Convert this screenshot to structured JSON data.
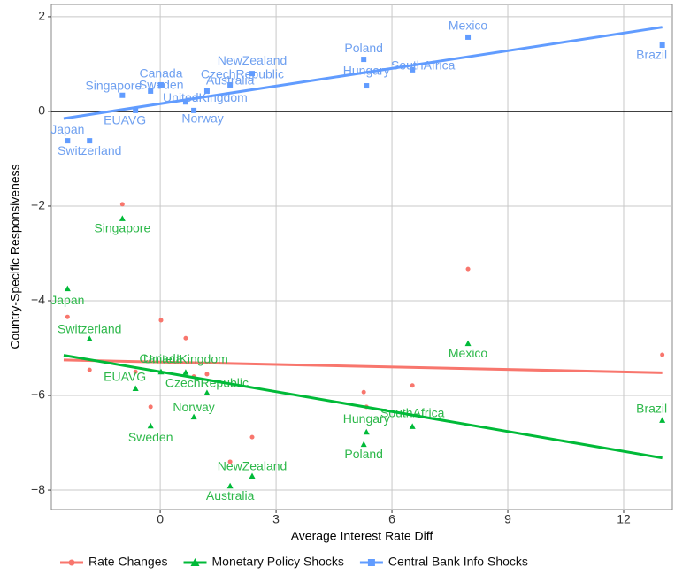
{
  "chart_data": {
    "type": "scatter",
    "x_label": "Average Interest Rate Diff",
    "y_label": "Country-Specific Responsiveness",
    "xlim": [
      -2.82,
      13.26
    ],
    "ylim": [
      -8.41,
      2.26
    ],
    "xticks": [
      0,
      3,
      6,
      9,
      12
    ],
    "yticks": [
      {
        "value": -8,
        "label": "−8"
      },
      {
        "value": -6,
        "label": "−6"
      },
      {
        "value": -4,
        "label": "−4"
      },
      {
        "value": -2,
        "label": "−2"
      },
      0,
      2
    ],
    "grid": true,
    "hline": 0,
    "legend": "bottom",
    "labels": [
      "Japan",
      "Switzerland",
      "Singapore",
      "EUAVG",
      "Sweden",
      "Canada",
      "UnitedKingdom",
      "Norway",
      "CzechRepublic",
      "Australia",
      "NewZealand",
      "Hungary",
      "Poland",
      "SouthAfrica",
      "Mexico",
      "Brazil"
    ],
    "x": [
      -2.4,
      -1.83,
      -0.98,
      -0.64,
      -0.25,
      0.02,
      0.66,
      0.87,
      1.21,
      1.81,
      2.38,
      5.34,
      5.27,
      6.53,
      7.97,
      13.0
    ],
    "series": [
      {
        "name": "Rate Changes",
        "color": "#f8766d",
        "marker": "circle",
        "show_labels": false,
        "values": [
          -4.34,
          -5.46,
          -1.96,
          -5.5,
          -6.24,
          -4.41,
          -4.79,
          -5.6,
          -5.55,
          -7.4,
          -6.88,
          -6.24,
          -5.93,
          -5.79,
          -3.33,
          -5.14
        ],
        "trend_x": [
          -2.5,
          13
        ],
        "trend_y": [
          -5.25,
          -5.52
        ]
      },
      {
        "name": "Monetary Policy Shocks",
        "color": "#00ba38",
        "label_color": "#2db84a",
        "marker": "triangle",
        "show_labels": true,
        "values": [
          -3.74,
          -4.8,
          -2.26,
          -5.85,
          -6.64,
          -5.5,
          -5.51,
          -6.45,
          -5.94,
          -7.91,
          -7.7,
          -6.77,
          -7.03,
          -6.65,
          -4.9,
          -6.52
        ],
        "trend_x": [
          -2.5,
          13
        ],
        "trend_y": [
          -5.15,
          -7.32
        ]
      },
      {
        "name": "Central Bank Info Shocks",
        "color": "#619cff",
        "label_color": "#6fa0f0",
        "marker": "square",
        "show_labels": true,
        "values": [
          -0.62,
          -0.62,
          0.34,
          0.02,
          0.43,
          0.56,
          0.2,
          0.02,
          0.43,
          0.56,
          0.8,
          0.54,
          1.1,
          0.88,
          1.57,
          1.4
        ],
        "trend_x": [
          -2.5,
          13
        ],
        "trend_y": [
          -0.15,
          1.78
        ]
      }
    ]
  }
}
